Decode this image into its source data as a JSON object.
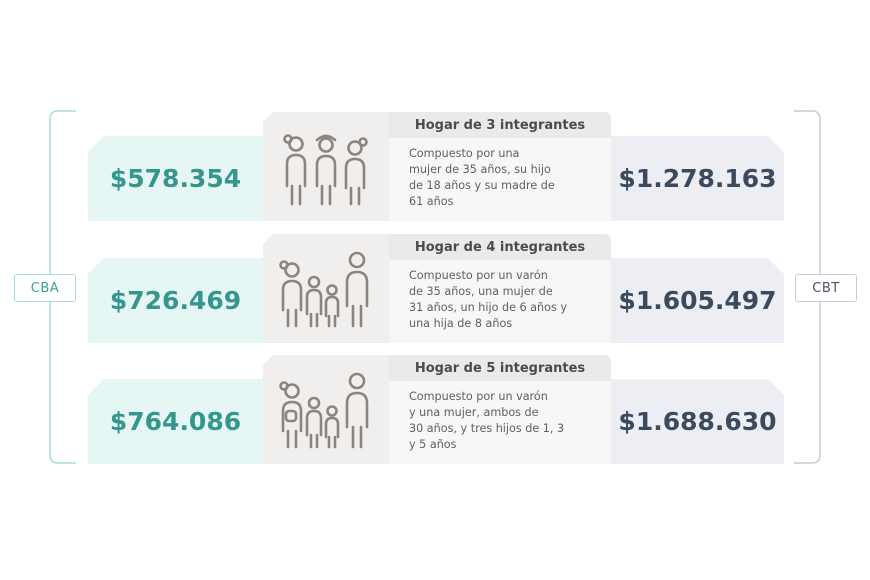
{
  "labels": {
    "cba": "CBA",
    "cbt": "CBT"
  },
  "colors": {
    "cba_accent": "#34968c",
    "cbt_accent": "#3c4a5e",
    "icon_stroke": "#8b8581"
  },
  "households": [
    {
      "title": "Hogar de 3 integrantes",
      "cba": "$578.354",
      "cbt": "$1.278.163",
      "description": [
        "Compuesto por una",
        "mujer de 35 años, su hijo",
        "de 18 años y su madre de",
        "61 años"
      ],
      "icon": "family-of-three-icon"
    },
    {
      "title": "Hogar de 4 integrantes",
      "cba": "$726.469",
      "cbt": "$1.605.497",
      "description": [
        "Compuesto por un varón",
        "de 35 años, una mujer de",
        "31 años, un hijo de 6 años y",
        "una hija de 8 años"
      ],
      "icon": "family-of-four-icon"
    },
    {
      "title": "Hogar de 5 integrantes",
      "cba": "$764.086",
      "cbt": "$1.688.630",
      "description": [
        "Compuesto por un varón",
        "y una mujer, ambos de",
        "30 años, y tres hijos de 1, 3",
        "y 5 años"
      ],
      "icon": "family-of-five-icon"
    }
  ]
}
